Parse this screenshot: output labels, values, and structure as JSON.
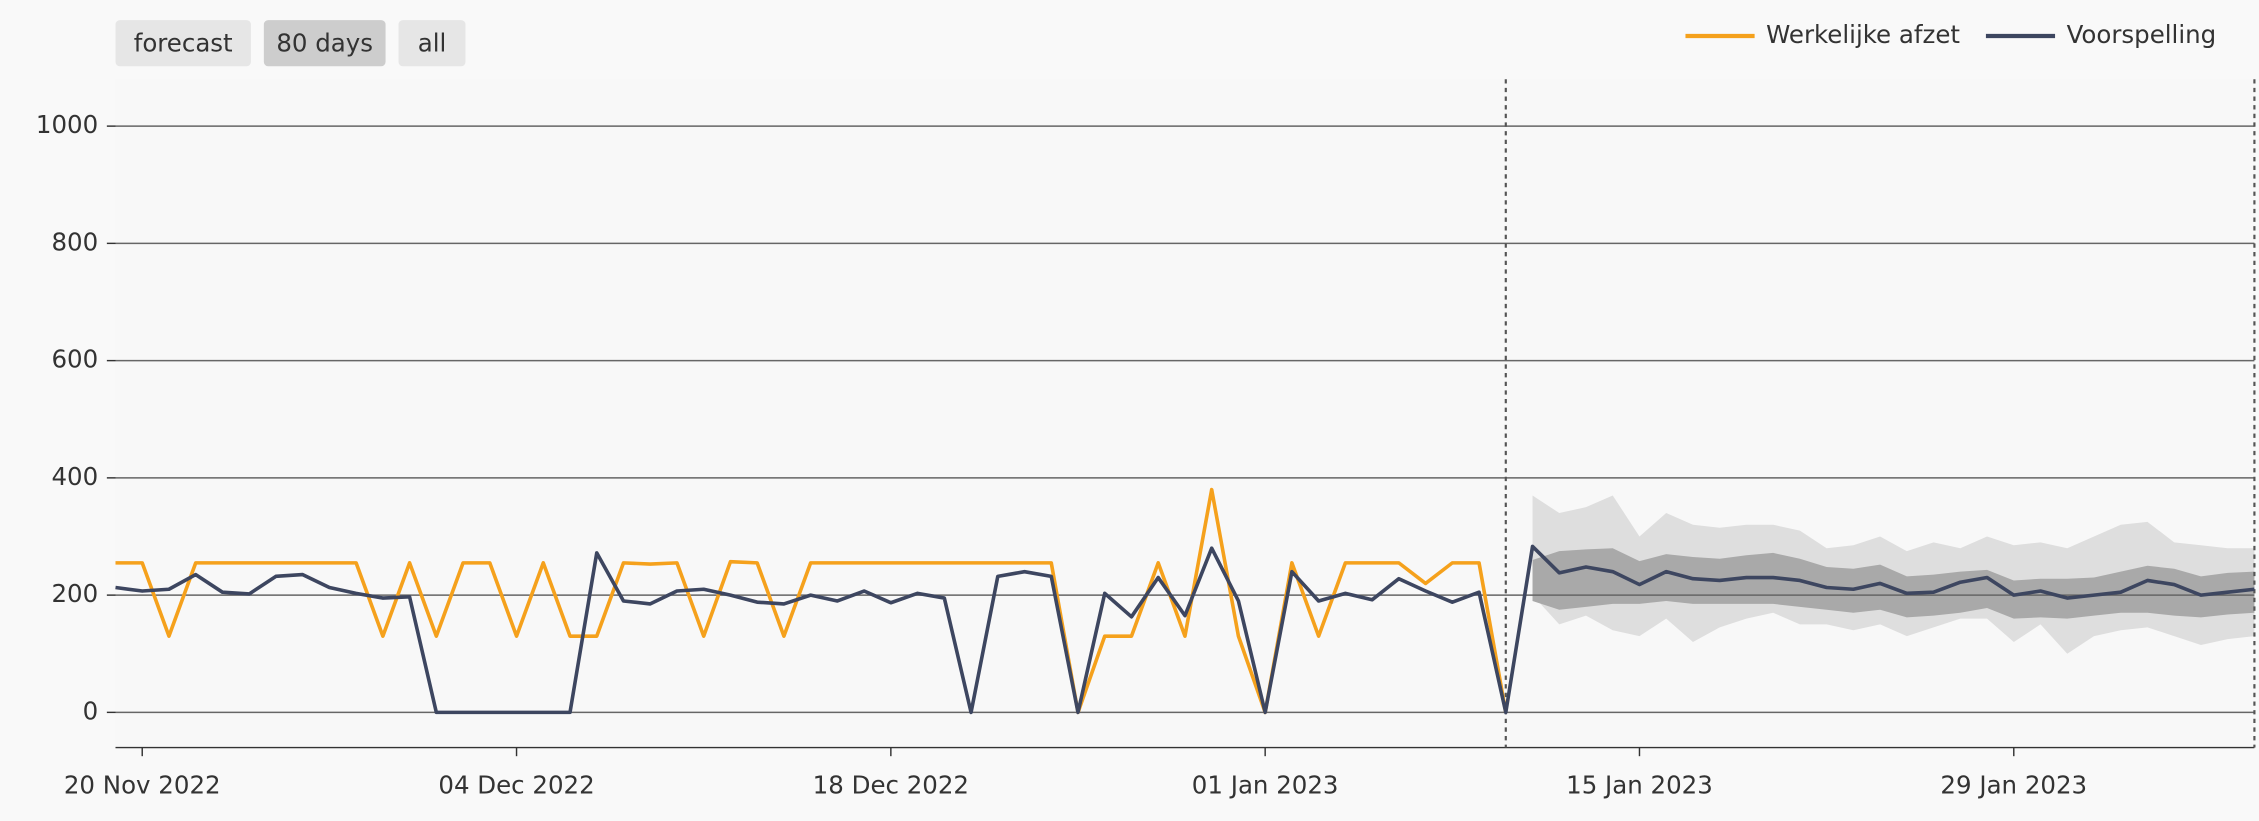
{
  "controls": {
    "buttons": [
      {
        "label": "forecast",
        "active": false
      },
      {
        "label": "80 days",
        "active": true
      },
      {
        "label": "all",
        "active": false
      }
    ]
  },
  "chart_data": {
    "type": "line",
    "x": [
      "2022-11-19",
      "2022-11-20",
      "2022-11-21",
      "2022-11-22",
      "2022-11-23",
      "2022-11-24",
      "2022-11-25",
      "2022-11-26",
      "2022-11-27",
      "2022-11-28",
      "2022-11-29",
      "2022-11-30",
      "2022-12-01",
      "2022-12-02",
      "2022-12-03",
      "2022-12-04",
      "2022-12-05",
      "2022-12-06",
      "2022-12-07",
      "2022-12-08",
      "2022-12-09",
      "2022-12-10",
      "2022-12-11",
      "2022-12-12",
      "2022-12-13",
      "2022-12-14",
      "2022-12-15",
      "2022-12-16",
      "2022-12-17",
      "2022-12-18",
      "2022-12-19",
      "2022-12-20",
      "2022-12-21",
      "2022-12-22",
      "2022-12-23",
      "2022-12-24",
      "2022-12-25",
      "2022-12-26",
      "2022-12-27",
      "2022-12-28",
      "2022-12-29",
      "2022-12-30",
      "2022-12-31",
      "2023-01-01",
      "2023-01-02",
      "2023-01-03",
      "2023-01-04",
      "2023-01-05",
      "2023-01-06",
      "2023-01-07",
      "2023-01-08",
      "2023-01-09",
      "2023-01-10",
      "2023-01-11",
      "2023-01-12",
      "2023-01-13",
      "2023-01-14",
      "2023-01-15",
      "2023-01-16",
      "2023-01-17",
      "2023-01-18",
      "2023-01-19",
      "2023-01-20",
      "2023-01-21",
      "2023-01-22",
      "2023-01-23",
      "2023-01-24",
      "2023-01-25",
      "2023-01-26",
      "2023-01-27",
      "2023-01-28",
      "2023-01-29",
      "2023-01-30",
      "2023-01-31",
      "2023-02-01",
      "2023-02-02",
      "2023-02-03",
      "2023-02-04",
      "2023-02-05",
      "2023-02-06",
      "2023-02-07"
    ],
    "series": [
      {
        "name": "Werkelijke afzet",
        "color": "#f5a11c",
        "values": [
          255,
          255,
          130,
          255,
          255,
          255,
          255,
          255,
          255,
          255,
          130,
          255,
          130,
          255,
          255,
          130,
          255,
          130,
          130,
          255,
          253,
          255,
          130,
          257,
          255,
          130,
          255,
          255,
          255,
          255,
          255,
          255,
          255,
          255,
          255,
          255,
          0,
          130,
          130,
          255,
          130,
          380,
          130,
          0,
          255,
          130,
          255,
          255,
          255,
          220,
          255,
          255,
          0,
          null,
          null,
          null,
          null,
          null,
          null,
          null,
          null,
          null,
          null,
          null,
          null,
          null,
          null,
          null,
          null,
          null,
          null,
          null,
          null,
          null,
          null,
          null,
          null,
          null,
          null,
          null,
          null
        ]
      },
      {
        "name": "Voorspelling",
        "color": "#3d4660",
        "values": [
          213,
          207,
          210,
          235,
          205,
          202,
          232,
          235,
          213,
          203,
          195,
          197,
          0,
          0,
          0,
          0,
          0,
          0,
          272,
          190,
          185,
          207,
          210,
          200,
          188,
          185,
          200,
          190,
          207,
          187,
          203,
          195,
          0,
          232,
          240,
          232,
          0,
          203,
          163,
          230,
          165,
          280,
          190,
          0,
          240,
          190,
          203,
          192,
          228,
          207,
          188,
          205,
          0,
          283,
          238,
          248,
          240,
          218,
          240,
          228,
          225,
          230,
          230,
          225,
          213,
          210,
          220,
          203,
          205,
          222,
          230,
          200,
          207,
          195,
          200,
          205,
          225,
          218,
          200,
          205,
          210
        ]
      }
    ],
    "bands": [
      {
        "color": "#dedede",
        "lower": [
          null,
          null,
          null,
          null,
          null,
          null,
          null,
          null,
          null,
          null,
          null,
          null,
          null,
          null,
          null,
          null,
          null,
          null,
          null,
          null,
          null,
          null,
          null,
          null,
          null,
          null,
          null,
          null,
          null,
          null,
          null,
          null,
          null,
          null,
          null,
          null,
          null,
          null,
          null,
          null,
          null,
          null,
          null,
          null,
          null,
          null,
          null,
          null,
          null,
          null,
          null,
          null,
          null,
          200,
          150,
          165,
          140,
          130,
          160,
          120,
          145,
          160,
          170,
          150,
          150,
          140,
          150,
          130,
          145,
          160,
          160,
          120,
          150,
          100,
          130,
          140,
          145,
          130,
          115,
          125,
          130
        ],
        "upper": [
          null,
          null,
          null,
          null,
          null,
          null,
          null,
          null,
          null,
          null,
          null,
          null,
          null,
          null,
          null,
          null,
          null,
          null,
          null,
          null,
          null,
          null,
          null,
          null,
          null,
          null,
          null,
          null,
          null,
          null,
          null,
          null,
          null,
          null,
          null,
          null,
          null,
          null,
          null,
          null,
          null,
          null,
          null,
          null,
          null,
          null,
          null,
          null,
          null,
          null,
          null,
          null,
          null,
          370,
          340,
          350,
          370,
          300,
          340,
          320,
          315,
          320,
          320,
          310,
          280,
          285,
          300,
          275,
          290,
          280,
          300,
          285,
          290,
          280,
          300,
          320,
          325,
          290,
          285,
          280,
          280
        ]
      },
      {
        "color": "#a9a9a9",
        "lower": [
          null,
          null,
          null,
          null,
          null,
          null,
          null,
          null,
          null,
          null,
          null,
          null,
          null,
          null,
          null,
          null,
          null,
          null,
          null,
          null,
          null,
          null,
          null,
          null,
          null,
          null,
          null,
          null,
          null,
          null,
          null,
          null,
          null,
          null,
          null,
          null,
          null,
          null,
          null,
          null,
          null,
          null,
          null,
          null,
          null,
          null,
          null,
          null,
          null,
          null,
          null,
          null,
          null,
          190,
          175,
          180,
          185,
          185,
          190,
          185,
          185,
          185,
          185,
          180,
          175,
          170,
          175,
          162,
          165,
          170,
          178,
          160,
          162,
          160,
          165,
          170,
          170,
          165,
          162,
          167,
          170
        ],
        "upper": [
          null,
          null,
          null,
          null,
          null,
          null,
          null,
          null,
          null,
          null,
          null,
          null,
          null,
          null,
          null,
          null,
          null,
          null,
          null,
          null,
          null,
          null,
          null,
          null,
          null,
          null,
          null,
          null,
          null,
          null,
          null,
          null,
          null,
          null,
          null,
          null,
          null,
          null,
          null,
          null,
          null,
          null,
          null,
          null,
          null,
          null,
          null,
          null,
          null,
          null,
          null,
          null,
          null,
          260,
          275,
          278,
          280,
          258,
          270,
          265,
          262,
          268,
          272,
          262,
          248,
          245,
          252,
          232,
          235,
          240,
          243,
          225,
          228,
          228,
          230,
          240,
          250,
          245,
          232,
          238,
          240
        ]
      }
    ],
    "vlines": [
      "2023-01-10",
      "2023-02-07"
    ],
    "xlim": [
      "2022-11-19",
      "2023-02-07"
    ],
    "xticks": [
      {
        "value": "2022-11-20",
        "label": "20 Nov 2022"
      },
      {
        "value": "2022-12-04",
        "label": "04 Dec 2022"
      },
      {
        "value": "2022-12-18",
        "label": "18 Dec 2022"
      },
      {
        "value": "2023-01-01",
        "label": "01 Jan 2023"
      },
      {
        "value": "2023-01-15",
        "label": "15 Jan 2023"
      },
      {
        "value": "2023-01-29",
        "label": "29 Jan 2023"
      }
    ],
    "ylim": [
      -60,
      1080
    ],
    "yticks": [
      0,
      200,
      400,
      600,
      800,
      1000
    ],
    "grid": true,
    "legend": "top-right"
  }
}
